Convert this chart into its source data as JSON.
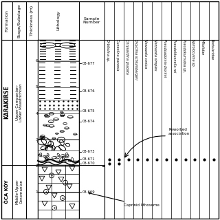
{
  "microfossil_columns": [
    "Orbitolina sp.",
    "Cuneolina pavonia",
    "Chrysalidina gradata",
    "Dicyclina schlumbergeri",
    "Nezzazata conica",
    "Nezzazata simplex",
    "Pseudoadomia drorimi",
    "Pseudolituonella rei",
    "Pseudokurnubia sp.",
    "Spiroloculina sp.",
    "Miliolidae",
    "Textularidae"
  ],
  "samples": [
    "03-677",
    "03-676",
    "03-675",
    "03-674",
    "03-673",
    "03-671",
    "03-670",
    "03-669"
  ],
  "background": "#ffffff",
  "line_color": "#000000"
}
